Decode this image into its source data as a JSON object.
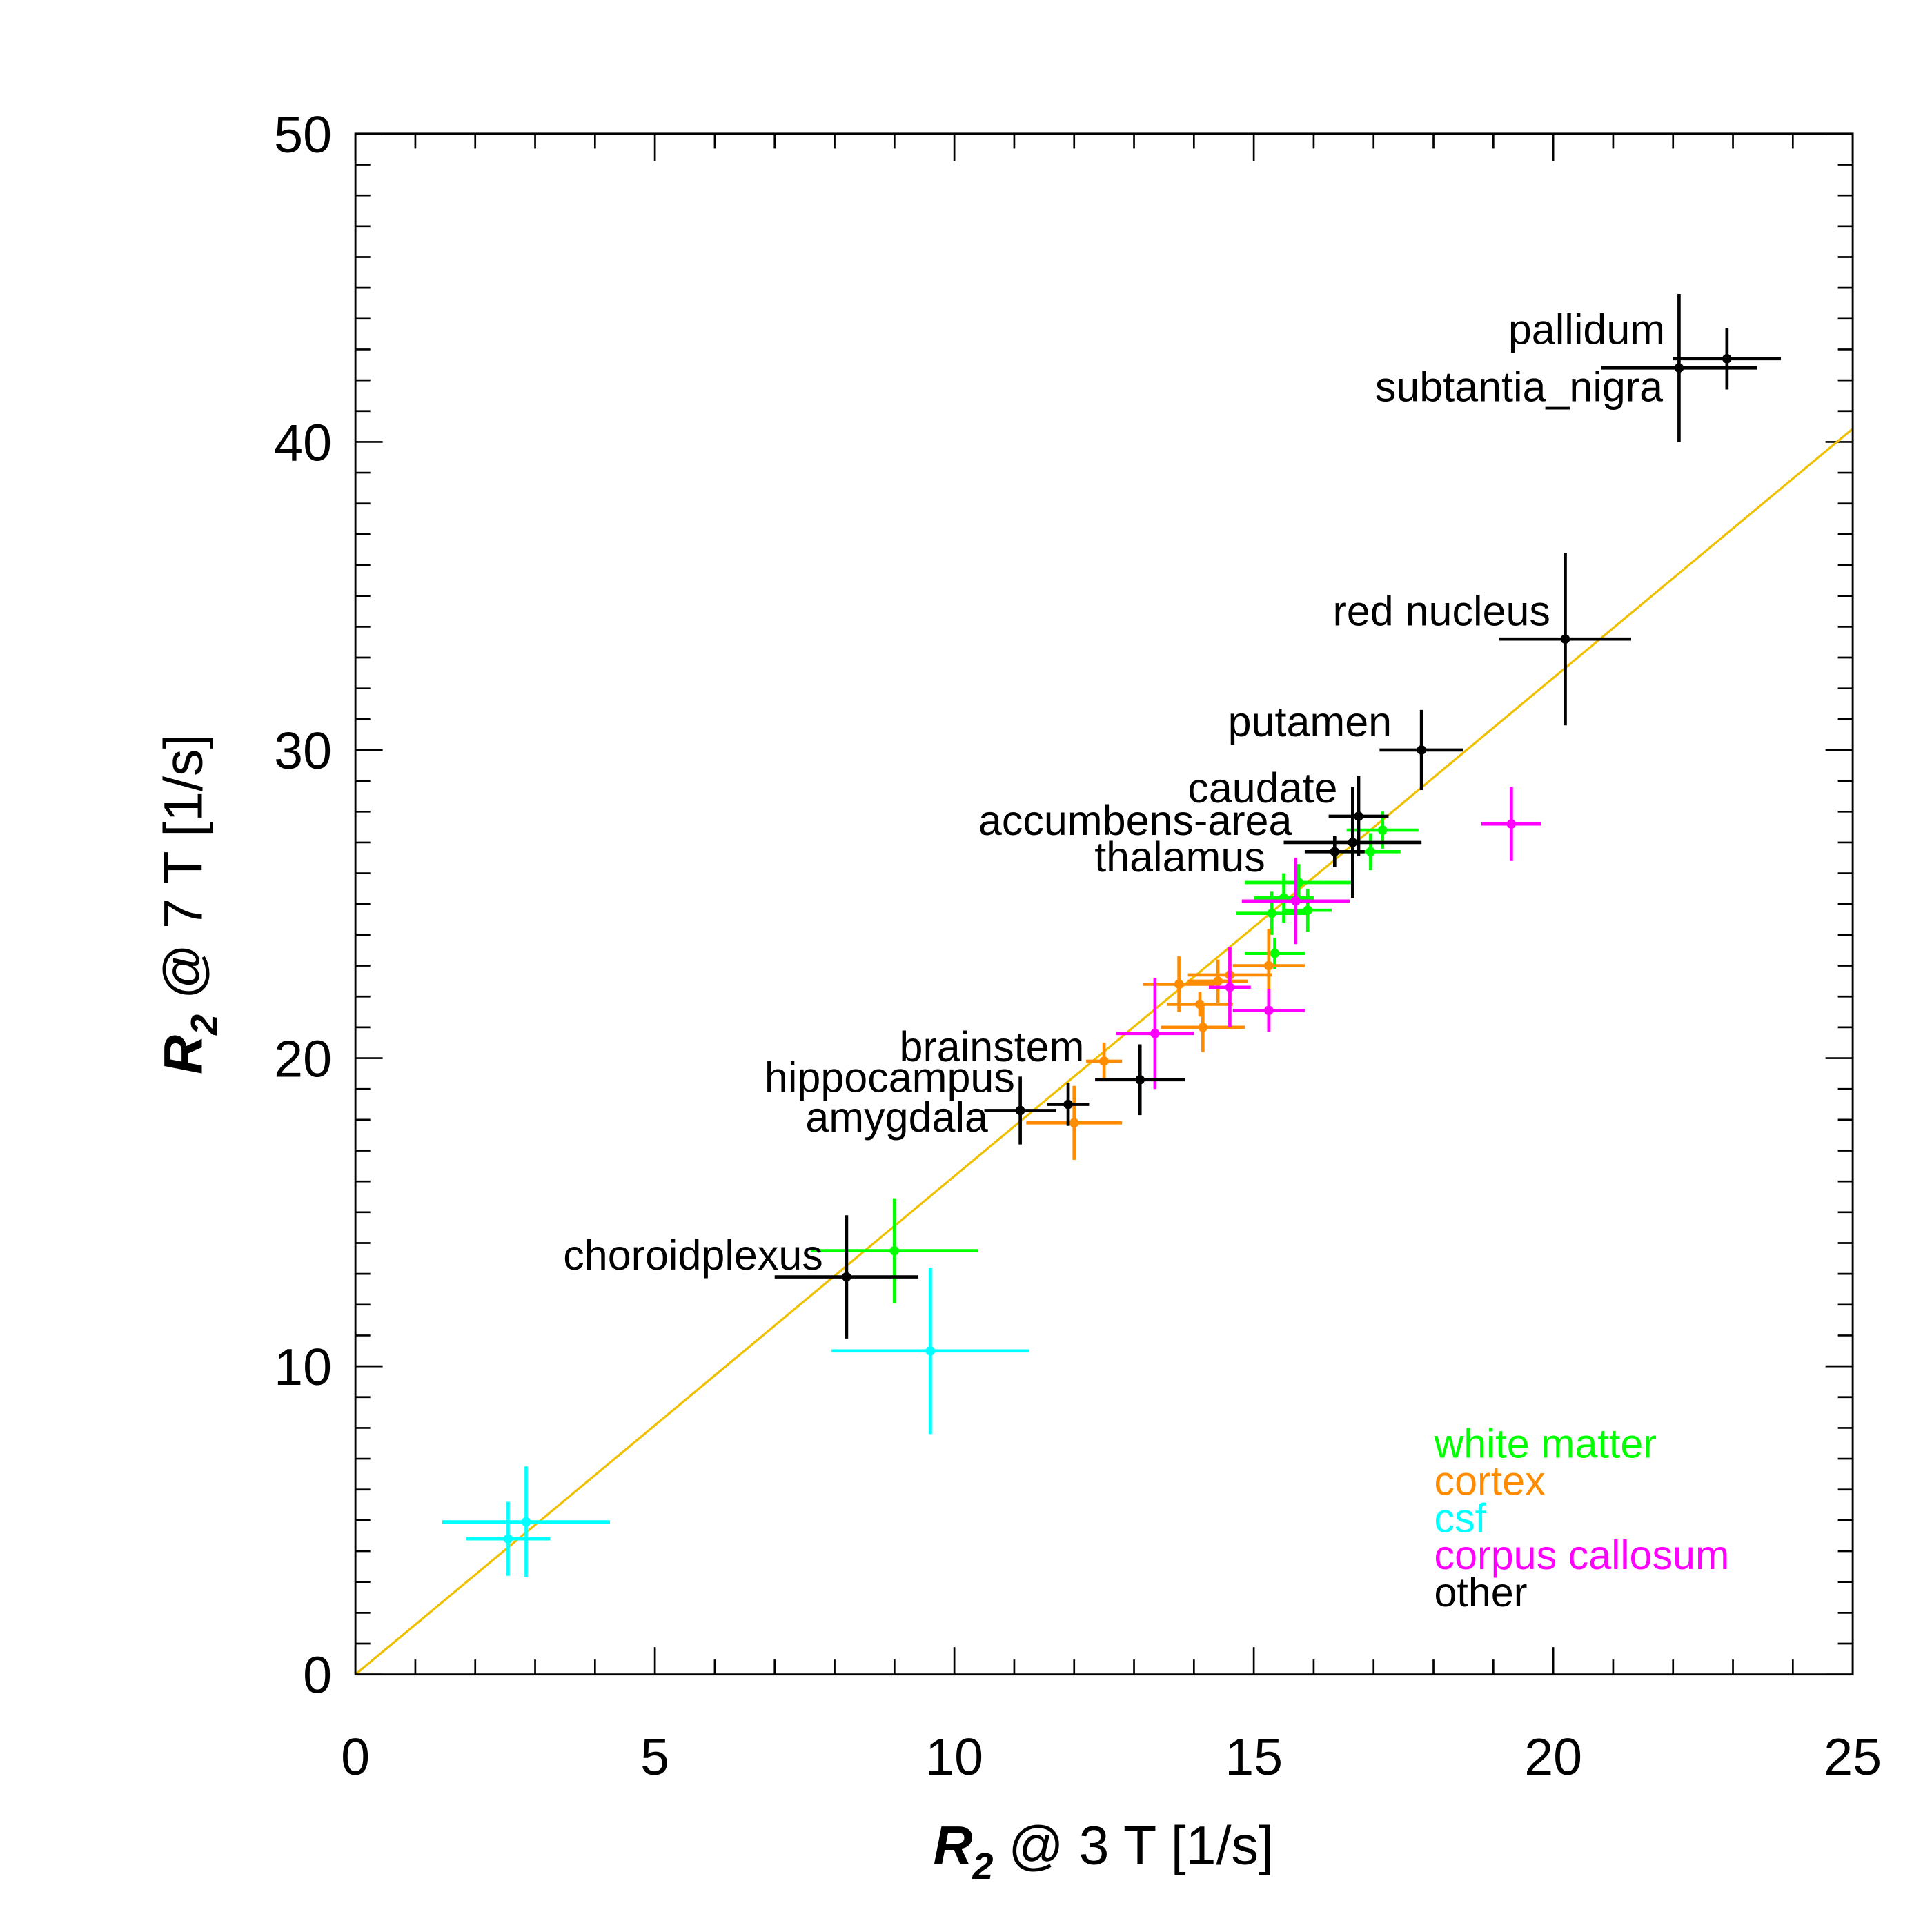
{
  "chart_data": {
    "type": "scatter",
    "xlabel": {
      "symbol": "R",
      "sub": "2",
      "rest": " @ 3 T [1/s]"
    },
    "ylabel": {
      "symbol": "R",
      "sub": "2",
      "rest": " @ 7 T [1/s]"
    },
    "xlim": [
      0,
      25
    ],
    "ylim": [
      0,
      50
    ],
    "xticks": [
      "0",
      "5",
      "10",
      "15",
      "20",
      "25"
    ],
    "yticks": [
      "0",
      "10",
      "20",
      "30",
      "40",
      "50"
    ],
    "x_major_step": 5,
    "x_minor_step": 1,
    "y_major_step": 10,
    "y_minor_step": 1,
    "grid": false,
    "identity_line": {
      "color": "#f0c000",
      "slope": 1.617
    },
    "legend_position": "bottom-right",
    "legend": [
      {
        "name": "white matter",
        "color": "#00ff00"
      },
      {
        "name": "cortex",
        "color": "#ff8c00"
      },
      {
        "name": "csf",
        "color": "#00ffff"
      },
      {
        "name": "corpus callosum",
        "color": "#ff00ff"
      },
      {
        "name": "other",
        "color": "#000000"
      }
    ],
    "series": [
      {
        "name": "white matter",
        "color": "#00ff00",
        "points": [
          {
            "x": 17.15,
            "y": 27.4,
            "xerr": 0.6,
            "yerr": 0.6
          },
          {
            "x": 16.95,
            "y": 26.7,
            "xerr": 0.5,
            "yerr": 0.6
          },
          {
            "x": 15.75,
            "y": 25.7,
            "xerr": 0.9,
            "yerr": 0.6
          },
          {
            "x": 15.5,
            "y": 25.2,
            "xerr": 0.5,
            "yerr": 0.8
          },
          {
            "x": 15.9,
            "y": 24.8,
            "xerr": 0.4,
            "yerr": 0.7
          },
          {
            "x": 15.3,
            "y": 24.7,
            "xerr": 0.6,
            "yerr": 0.7
          },
          {
            "x": 15.35,
            "y": 23.4,
            "xerr": 0.5,
            "yerr": 0.5
          },
          {
            "x": 9.0,
            "y": 13.75,
            "xerr": 1.4,
            "yerr": 1.7
          }
        ]
      },
      {
        "name": "cortex",
        "color": "#ff8c00",
        "points": [
          {
            "x": 15.25,
            "y": 23.0,
            "xerr": 0.6,
            "yerr": 1.2
          },
          {
            "x": 14.6,
            "y": 22.7,
            "xerr": 0.7,
            "yerr": 0.9
          },
          {
            "x": 14.4,
            "y": 22.5,
            "xerr": 0.5,
            "yerr": 0.7
          },
          {
            "x": 13.75,
            "y": 22.4,
            "xerr": 0.6,
            "yerr": 0.9
          },
          {
            "x": 14.1,
            "y": 21.75,
            "xerr": 0.55,
            "yerr": 0.4
          },
          {
            "x": 14.15,
            "y": 21.0,
            "xerr": 0.7,
            "yerr": 0.8
          },
          {
            "x": 12.5,
            "y": 19.9,
            "xerr": 0.3,
            "yerr": 0.6
          },
          {
            "x": 12.0,
            "y": 17.9,
            "xerr": 0.8,
            "yerr": 1.2
          }
        ]
      },
      {
        "name": "csf",
        "color": "#00ffff",
        "points": [
          {
            "x": 9.6,
            "y": 10.5,
            "xerr": 1.65,
            "yerr": 2.7
          },
          {
            "x": 2.85,
            "y": 4.95,
            "xerr": 1.4,
            "yerr": 1.8
          },
          {
            "x": 2.55,
            "y": 4.4,
            "xerr": 0.7,
            "yerr": 1.2
          }
        ]
      },
      {
        "name": "corpus callosum",
        "color": "#ff00ff",
        "points": [
          {
            "x": 19.3,
            "y": 27.6,
            "xerr": 0.5,
            "yerr": 1.2
          },
          {
            "x": 15.7,
            "y": 25.1,
            "xerr": 0.9,
            "yerr": 1.4
          },
          {
            "x": 14.6,
            "y": 22.3,
            "xerr": 0.35,
            "yerr": 1.3
          },
          {
            "x": 15.25,
            "y": 21.55,
            "xerr": 0.6,
            "yerr": 0.7
          },
          {
            "x": 13.35,
            "y": 20.8,
            "xerr": 0.65,
            "yerr": 1.8
          }
        ]
      },
      {
        "name": "other",
        "color": "#000000",
        "points": [
          {
            "x": 22.9,
            "y": 42.7,
            "xerr": 0.9,
            "yerr": 1.0,
            "label": "pallidum"
          },
          {
            "x": 22.1,
            "y": 42.4,
            "xerr": 1.3,
            "yerr": 2.4,
            "label": "subtantia_nigra"
          },
          {
            "x": 20.2,
            "y": 33.6,
            "xerr": 1.1,
            "yerr": 2.8,
            "label": "red nucleus"
          },
          {
            "x": 17.8,
            "y": 30.0,
            "xerr": 0.7,
            "yerr": 1.3,
            "label": "putamen"
          },
          {
            "x": 16.75,
            "y": 27.85,
            "xerr": 0.5,
            "yerr": 1.3,
            "label": "caudate"
          },
          {
            "x": 16.65,
            "y": 27.0,
            "xerr": 1.15,
            "yerr": 1.8,
            "label": "accumbens-area"
          },
          {
            "x": 16.35,
            "y": 26.7,
            "xerr": 0.5,
            "yerr": 0.5,
            "label": "thalamus"
          },
          {
            "x": 13.1,
            "y": 19.3,
            "xerr": 0.75,
            "yerr": 1.15,
            "label": "brainstem"
          },
          {
            "x": 11.9,
            "y": 18.5,
            "xerr": 0.35,
            "yerr": 0.7,
            "label": "hippocampus"
          },
          {
            "x": 11.1,
            "y": 18.3,
            "xerr": 0.6,
            "yerr": 1.1,
            "label": "amygdala"
          },
          {
            "x": 8.2,
            "y": 12.9,
            "xerr": 1.2,
            "yerr": 2.0,
            "label": "choroidplexus"
          }
        ]
      }
    ]
  }
}
